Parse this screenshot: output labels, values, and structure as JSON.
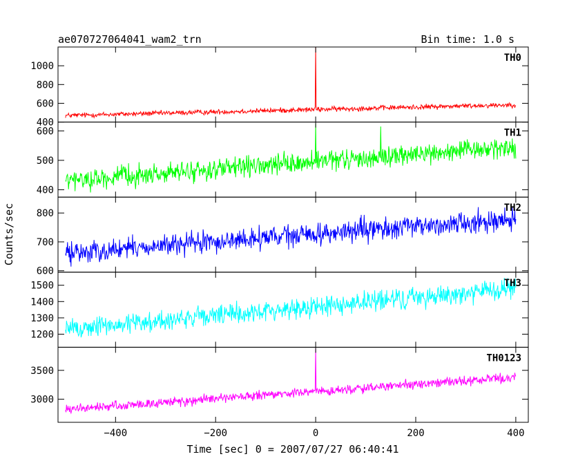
{
  "header": {
    "title": "ae070727064041_wam2_trn",
    "bin_time": "Bin time: 1.0 s"
  },
  "chart_data": {
    "type": "line",
    "ylabel": "Counts/sec",
    "xlabel": "Time [sec] 0 = 2007/07/27 06:40:41",
    "xlim": [
      -515,
      425
    ],
    "x_ticks": [
      -400,
      -200,
      0,
      200,
      400
    ],
    "x_tick_labels": [
      "−400",
      "−200",
      "0",
      "200",
      "400"
    ],
    "grid": false,
    "panels": [
      {
        "name": "TH0",
        "color": "#ff0000",
        "ylim": [
          400,
          1200
        ],
        "y_ticks": [
          400,
          600,
          800,
          1000
        ],
        "x_range": [
          -500,
          400
        ],
        "start": 470,
        "end": 585,
        "noise": 25,
        "spikes": [
          {
            "x": 0,
            "value": 1200
          }
        ]
      },
      {
        "name": "TH1",
        "color": "#00ff00",
        "ylim": [
          375,
          630
        ],
        "y_ticks": [
          400,
          500,
          600
        ],
        "x_range": [
          -500,
          400
        ],
        "start": 430,
        "end": 545,
        "noise": 32,
        "spikes": [
          {
            "x": 0,
            "value": 625
          },
          {
            "x": 130,
            "value": 615
          }
        ]
      },
      {
        "name": "TH2",
        "color": "#0000ff",
        "ylim": [
          595,
          855
        ],
        "y_ticks": [
          600,
          700,
          800
        ],
        "x_range": [
          -500,
          400
        ],
        "start": 660,
        "end": 780,
        "noise": 35,
        "spikes": []
      },
      {
        "name": "TH3",
        "color": "#00ffff",
        "ylim": [
          1120,
          1580
        ],
        "y_ticks": [
          1200,
          1300,
          1400,
          1500
        ],
        "x_range": [
          -500,
          400
        ],
        "start": 1230,
        "end": 1480,
        "noise": 60,
        "spikes": []
      },
      {
        "name": "TH0123",
        "color": "#ff00ff",
        "ylim": [
          2600,
          3900
        ],
        "y_ticks": [
          3000,
          3500
        ],
        "x_range": [
          -500,
          400
        ],
        "start": 2820,
        "end": 3380,
        "noise": 75,
        "spikes": [
          {
            "x": 0,
            "value": 3880
          }
        ]
      }
    ]
  }
}
